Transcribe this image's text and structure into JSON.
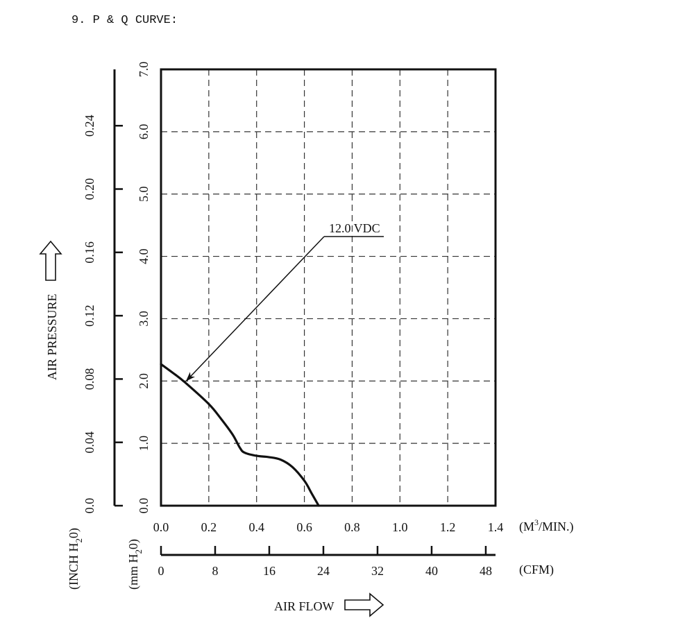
{
  "header": {
    "title": "9. P & Q CURVE:"
  },
  "chart_data": {
    "type": "line",
    "title": "9. P & Q CURVE:",
    "xlabel": "AIR FLOW",
    "ylabel": "AIR PRESSURE",
    "xlim": [
      0,
      1.4
    ],
    "ylim": [
      0,
      7.0
    ],
    "grid": true,
    "x_axes": {
      "primary": {
        "unit": "(M3/MIN.)",
        "unit_base": "(M",
        "unit_sup": "3",
        "unit_tail": "/MIN.)",
        "ticks": [
          "0.0",
          "0.2",
          "0.4",
          "0.6",
          "0.8",
          "1.0",
          "1.2",
          "1.4"
        ]
      },
      "secondary": {
        "unit": "(CFM)",
        "ticks": [
          "0",
          "8",
          "16",
          "24",
          "32",
          "40",
          "48"
        ]
      }
    },
    "y_axes": {
      "primary": {
        "unit": "(mm H2O)",
        "unit_a": "(mm H",
        "unit_sub": "2",
        "unit_b": "0)",
        "ticks": [
          "0.0",
          "1.0",
          "2.0",
          "3.0",
          "4.0",
          "5.0",
          "6.0",
          "7.0"
        ]
      },
      "secondary": {
        "unit": "(INCH H2O)",
        "unit_a": "(INCH H",
        "unit_sub": "2",
        "unit_b": "0)",
        "ticks": [
          "0.0",
          "0.04",
          "0.08",
          "0.12",
          "0.16",
          "0.20",
          "0.24"
        ]
      }
    },
    "series": [
      {
        "name": "12.0 VDC",
        "x": [
          0.0,
          0.05,
          0.1,
          0.2,
          0.25,
          0.3,
          0.33,
          0.35,
          0.4,
          0.45,
          0.5,
          0.55,
          0.6,
          0.63,
          0.66
        ],
        "y": [
          2.27,
          2.13,
          1.98,
          1.63,
          1.4,
          1.14,
          0.93,
          0.85,
          0.8,
          0.78,
          0.74,
          0.62,
          0.4,
          0.2,
          0.0
        ]
      }
    ],
    "annotation": {
      "text": "12.0 VDC",
      "points_to": [
        0.1,
        1.98
      ]
    }
  }
}
